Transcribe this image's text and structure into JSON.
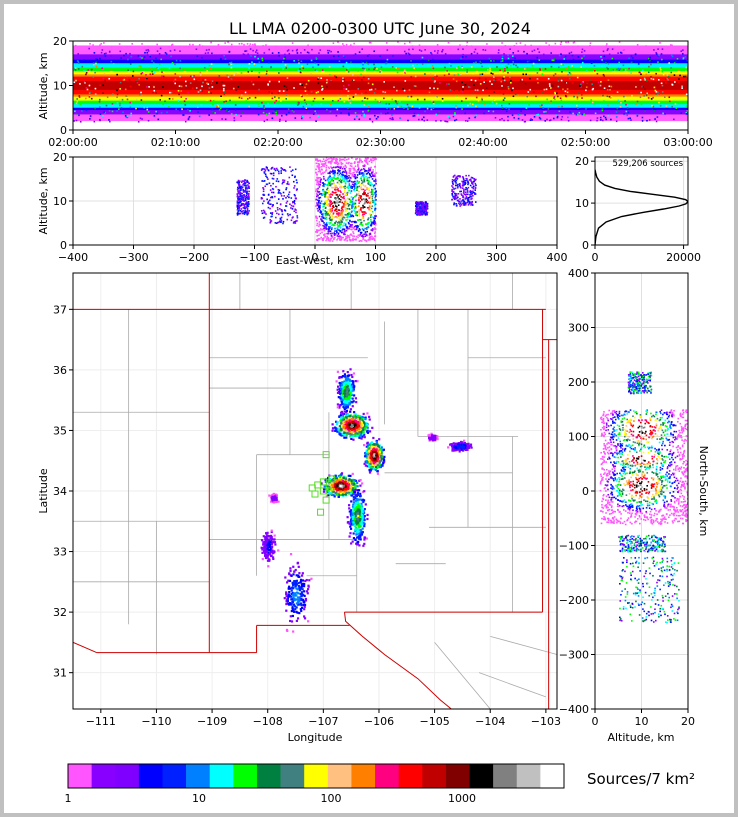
{
  "chart_data": [
    {
      "panel": "time-altitude",
      "type": "heatmap",
      "title": "LL LMA 0200-0300 UTC June 30, 2024",
      "ylabel": "Altitude, km",
      "ylim": [
        0,
        20
      ],
      "yticks": [
        "0",
        "10",
        "20"
      ],
      "xlim": [
        "02:00:00",
        "03:00:00"
      ],
      "xticks": [
        "02:00:00",
        "02:10:00",
        "02:20:00",
        "02:30:00",
        "02:40:00",
        "02:50:00",
        "03:00:00"
      ],
      "band_altitude_km": [
        5,
        15
      ],
      "core_altitude_km": [
        8,
        12
      ]
    },
    {
      "panel": "east-west-altitude",
      "type": "heatmap",
      "xlabel": "East-West, km",
      "ylabel": "Altitude, km",
      "xlim": [
        -400,
        400
      ],
      "ylim": [
        0,
        20
      ],
      "xticks": [
        "−400",
        "−300",
        "−200",
        "−100",
        "0",
        "100",
        "200",
        "300",
        "400"
      ],
      "yticks": [
        "0",
        "10",
        "20"
      ],
      "clusters": [
        {
          "x_km": [
            -130,
            -110
          ],
          "alt_km": [
            7,
            15
          ]
        },
        {
          "x_km": [
            -90,
            -30
          ],
          "alt_km": [
            5,
            18
          ]
        },
        {
          "x_km": [
            0,
            100
          ],
          "alt_km": [
            1,
            20
          ],
          "core": true
        },
        {
          "x_km": [
            165,
            185
          ],
          "alt_km": [
            7,
            10
          ]
        },
        {
          "x_km": [
            225,
            265
          ],
          "alt_km": [
            9,
            16
          ]
        }
      ]
    },
    {
      "panel": "altitude-histogram",
      "type": "line",
      "annotation": "529,206 sources",
      "xlim": [
        0,
        21000
      ],
      "ylim": [
        0,
        21
      ],
      "xticks": [
        "0",
        "20000"
      ],
      "yticks": [
        "0",
        "10",
        "20"
      ],
      "x": [
        0,
        200,
        800,
        2500,
        6000,
        11000,
        15500,
        19000,
        20500,
        21000,
        20500,
        18000,
        13000,
        8000,
        4500,
        2200,
        1000,
        400,
        150,
        0
      ],
      "y": [
        0,
        2,
        4,
        5.5,
        6.8,
        7.8,
        8.6,
        9.3,
        9.8,
        10.3,
        10.8,
        11.4,
        12.1,
        12.8,
        13.5,
        14.3,
        15.2,
        16.2,
        17.2,
        18
      ]
    },
    {
      "panel": "plan-view",
      "type": "heatmap",
      "xlabel": "Longitude",
      "ylabel": "Latitude",
      "xlim": [
        -111.5,
        -102.8
      ],
      "ylim": [
        30.4,
        37.6
      ],
      "xticks": [
        "−111",
        "−110",
        "−109",
        "−108",
        "−107",
        "−106",
        "−105",
        "−104",
        "−103"
      ],
      "yticks": [
        "31",
        "32",
        "33",
        "34",
        "35",
        "36",
        "37"
      ],
      "state_line_color": "#cc0000",
      "county_line_color": "#aaaaaa",
      "station_color": "#55dd22",
      "stations": [
        [
          -107.1,
          34.1
        ],
        [
          -107.0,
          34.15
        ],
        [
          -106.9,
          34.0
        ],
        [
          -107.0,
          34.0
        ],
        [
          -106.95,
          33.85
        ],
        [
          -106.85,
          34.2
        ],
        [
          -107.05,
          33.65
        ],
        [
          -106.95,
          34.6
        ],
        [
          -107.2,
          34.05
        ],
        [
          -107.15,
          33.95
        ]
      ],
      "clusters": [
        {
          "lon": -106.7,
          "lat": 34.1,
          "sx": 0.22,
          "sy": 0.13,
          "w": 1.0
        },
        {
          "lon": -106.1,
          "lat": 34.6,
          "sx": 0.12,
          "sy": 0.18,
          "w": 1.0
        },
        {
          "lon": -106.5,
          "lat": 35.1,
          "sx": 0.22,
          "sy": 0.15,
          "w": 0.95
        },
        {
          "lon": -106.6,
          "lat": 35.65,
          "sx": 0.12,
          "sy": 0.25,
          "w": 0.5
        },
        {
          "lon": -106.4,
          "lat": 33.6,
          "sx": 0.12,
          "sy": 0.35,
          "w": 0.5
        },
        {
          "lon": -107.5,
          "lat": 32.3,
          "sx": 0.18,
          "sy": 0.4,
          "w": 0.3
        },
        {
          "lon": -108.0,
          "lat": 33.1,
          "sx": 0.1,
          "sy": 0.2,
          "w": 0.2
        },
        {
          "lon": -104.55,
          "lat": 34.75,
          "sx": 0.15,
          "sy": 0.06,
          "w": 0.25
        },
        {
          "lon": -105.05,
          "lat": 34.9,
          "sx": 0.06,
          "sy": 0.04,
          "w": 0.15
        },
        {
          "lon": -107.9,
          "lat": 33.9,
          "sx": 0.05,
          "sy": 0.05,
          "w": 0.12
        }
      ]
    },
    {
      "panel": "altitude-north-south",
      "type": "heatmap",
      "xlabel": "Altitude, km",
      "ylabel": "North-South, km",
      "xlim": [
        0,
        20
      ],
      "ylim": [
        -400,
        400
      ],
      "xticks": [
        "0",
        "10",
        "20"
      ],
      "yticks": [
        "−400",
        "−300",
        "−200",
        "−100",
        "0",
        "100",
        "200",
        "300",
        "400"
      ],
      "clusters": [
        {
          "ns_km": [
            -240,
            -120
          ],
          "alt_km": [
            5,
            18
          ]
        },
        {
          "ns_km": [
            -110,
            -80
          ],
          "alt_km": [
            5,
            15
          ]
        },
        {
          "ns_km": [
            -60,
            150
          ],
          "alt_km": [
            1,
            20
          ],
          "core": true
        },
        {
          "ns_km": [
            180,
            220
          ],
          "alt_km": [
            7,
            12
          ]
        }
      ]
    }
  ],
  "colorbar": {
    "label": "Sources/7 km²",
    "ticks": [
      "1",
      "10",
      "100",
      "1000"
    ],
    "colors": [
      "#ff55ff",
      "#8800ff",
      "#8000ff",
      "#0000ff",
      "#0020ff",
      "#0080ff",
      "#00ffff",
      "#00ff00",
      "#008040",
      "#408080",
      "#ffff00",
      "#ffc080",
      "#ff8000",
      "#ff0080",
      "#ff0000",
      "#c00000",
      "#800000",
      "#000000",
      "#808080",
      "#c0c0c0",
      "#ffffff"
    ]
  }
}
